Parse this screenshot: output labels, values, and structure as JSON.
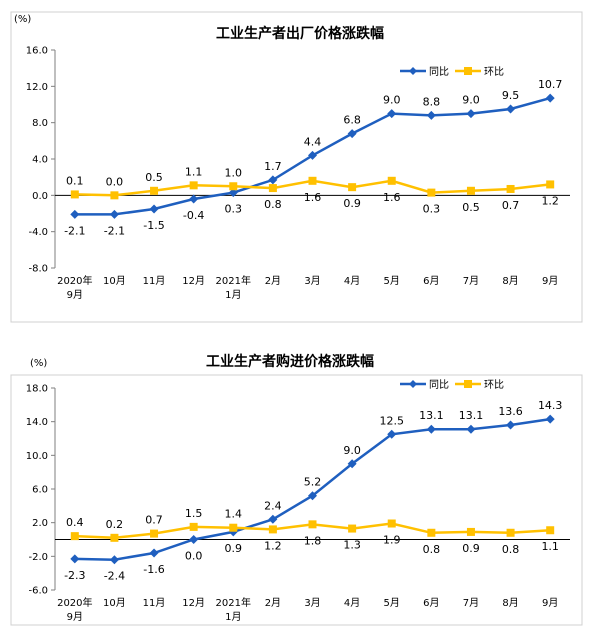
{
  "chart_data": [
    {
      "type": "line",
      "title": "工业生产者出厂价格涨跌幅",
      "unit": "(%)",
      "categories": [
        "2020年\n9月",
        "10月",
        "11月",
        "12月",
        "2021年\n1月",
        "2月",
        "3月",
        "4月",
        "5月",
        "6月",
        "7月",
        "8月",
        "9月"
      ],
      "ylim": [
        -8.0,
        16.0
      ],
      "yticks": [
        "16.0",
        "12.0",
        "8.0",
        "4.0",
        "0.0",
        "-4.0",
        "-8.0"
      ],
      "legend_position": "top-right",
      "grid": false,
      "series": [
        {
          "name": "同比",
          "color": "#1f5fbf",
          "marker": "diamond",
          "values": [
            -2.1,
            -2.1,
            -1.5,
            -0.4,
            0.3,
            1.7,
            4.4,
            6.8,
            9.0,
            8.8,
            9.0,
            9.5,
            10.7
          ],
          "labels": [
            "-2.1",
            "-2.1",
            "-1.5",
            "-0.4",
            "0.3",
            "1.7",
            "4.4",
            "6.8",
            "9.0",
            "8.8",
            "9.0",
            "9.5",
            "10.7"
          ]
        },
        {
          "name": "环比",
          "color": "#ffc000",
          "marker": "square",
          "values": [
            0.1,
            0.0,
            0.5,
            1.1,
            1.0,
            0.8,
            1.6,
            0.9,
            1.6,
            0.3,
            0.5,
            0.7,
            1.2
          ],
          "labels": [
            "0.1",
            "0.0",
            "0.5",
            "1.1",
            "1.0",
            "0.8",
            "1.6",
            "0.9",
            "1.6",
            "0.3",
            "0.5",
            "0.7",
            "1.2"
          ]
        }
      ]
    },
    {
      "type": "line",
      "title": "工业生产者购进价格涨跌幅",
      "unit": "(%)",
      "categories": [
        "2020年\n9月",
        "10月",
        "11月",
        "12月",
        "2021年\n1月",
        "2月",
        "3月",
        "4月",
        "5月",
        "6月",
        "7月",
        "8月",
        "9月"
      ],
      "ylim": [
        -6.0,
        18.0
      ],
      "yticks": [
        "18.0",
        "14.0",
        "10.0",
        "6.0",
        "2.0",
        "-2.0",
        "-6.0"
      ],
      "legend_position": "top-right",
      "grid": false,
      "series": [
        {
          "name": "同比",
          "color": "#1f5fbf",
          "marker": "diamond",
          "values": [
            -2.3,
            -2.4,
            -1.6,
            0.0,
            0.9,
            2.4,
            5.2,
            9.0,
            12.5,
            13.1,
            13.1,
            13.6,
            14.3
          ],
          "labels": [
            "-2.3",
            "-2.4",
            "-1.6",
            "0.0",
            "0.9",
            "2.4",
            "5.2",
            "9.0",
            "12.5",
            "13.1",
            "13.1",
            "13.6",
            "14.3"
          ]
        },
        {
          "name": "环比",
          "color": "#ffc000",
          "marker": "square",
          "values": [
            0.4,
            0.2,
            0.7,
            1.5,
            1.4,
            1.2,
            1.8,
            1.3,
            1.9,
            0.8,
            0.9,
            0.8,
            1.1
          ],
          "labels": [
            "0.4",
            "0.2",
            "0.7",
            "1.5",
            "1.4",
            "1.2",
            "1.8",
            "1.3",
            "1.9",
            "0.8",
            "0.9",
            "0.8",
            "1.1"
          ]
        }
      ]
    }
  ]
}
